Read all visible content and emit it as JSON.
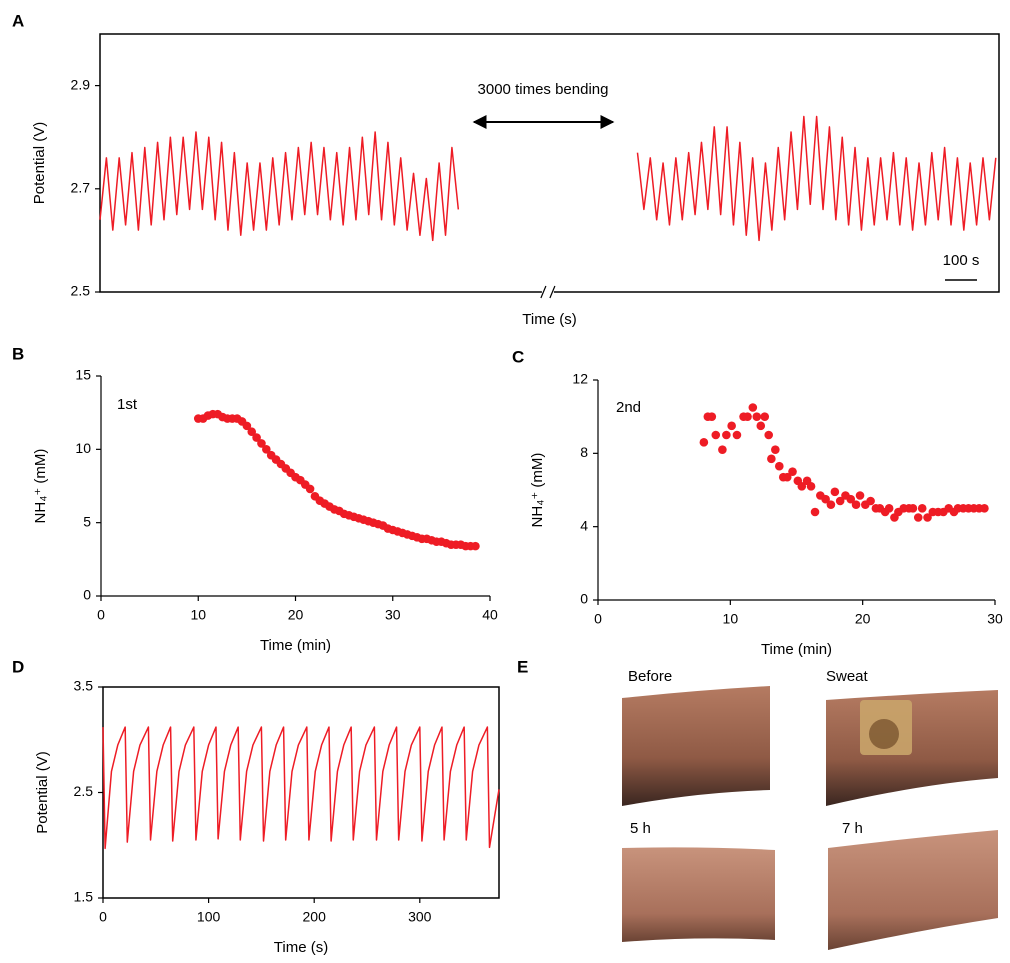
{
  "panel_labels": [
    "A",
    "B",
    "C",
    "D",
    "E"
  ],
  "photos": [
    {
      "label": "Before"
    },
    {
      "label": "Sweat"
    },
    {
      "label": "5 h"
    },
    {
      "label": "7 h"
    }
  ],
  "chart_data": [
    {
      "type": "line",
      "xlabel": "Time (s)",
      "ylabel": "Potential (V)",
      "color": "#ee1c25",
      "frame": true,
      "annotation": "3000 times bending",
      "scale_bar": {
        "value": 100,
        "label": "100 s"
      },
      "xlim": [
        0,
        2810
      ],
      "ylim": [
        2.5,
        3.0
      ],
      "yticks": [
        2.5,
        2.7,
        2.9
      ],
      "x": [
        0,
        20,
        40,
        60,
        80,
        100,
        120,
        140,
        160,
        180,
        200,
        220,
        240,
        260,
        280,
        300,
        320,
        340,
        360,
        380,
        400,
        420,
        440,
        460,
        480,
        500,
        520,
        540,
        560,
        580,
        600,
        620,
        640,
        660,
        680,
        700,
        720,
        740,
        760,
        780,
        800,
        820,
        840,
        860,
        880,
        900,
        920,
        940,
        960,
        980,
        1000,
        1020,
        1040,
        1060,
        1080,
        1100,
        1120,
        1400,
        1680,
        1700,
        1720,
        1740,
        1760,
        1780,
        1800,
        1820,
        1840,
        1860,
        1880,
        1900,
        1920,
        1940,
        1960,
        1980,
        2000,
        2020,
        2040,
        2060,
        2080,
        2100,
        2120,
        2140,
        2160,
        2180,
        2200,
        2220,
        2240,
        2260,
        2280,
        2300,
        2320,
        2340,
        2360,
        2380,
        2400,
        2420,
        2440,
        2460,
        2480,
        2500,
        2520,
        2540,
        2560,
        2580,
        2600,
        2620,
        2640,
        2660,
        2680,
        2700,
        2720,
        2740,
        2760,
        2780,
        2800
      ],
      "values": [
        2.64,
        2.76,
        2.62,
        2.76,
        2.63,
        2.77,
        2.62,
        2.78,
        2.63,
        2.79,
        2.64,
        2.8,
        2.65,
        2.8,
        2.66,
        2.81,
        2.66,
        2.8,
        2.64,
        2.79,
        2.62,
        2.77,
        2.61,
        2.75,
        2.62,
        2.75,
        2.62,
        2.76,
        2.63,
        2.77,
        2.64,
        2.78,
        2.65,
        2.79,
        2.65,
        2.78,
        2.64,
        2.77,
        2.63,
        2.78,
        2.64,
        2.8,
        2.65,
        2.81,
        2.64,
        2.79,
        2.63,
        2.76,
        2.62,
        2.73,
        2.61,
        2.72,
        2.6,
        2.75,
        2.61,
        2.78,
        2.66,
        null,
        2.77,
        2.66,
        2.76,
        2.64,
        2.75,
        2.63,
        2.76,
        2.64,
        2.77,
        2.65,
        2.79,
        2.66,
        2.82,
        2.65,
        2.82,
        2.63,
        2.79,
        2.61,
        2.76,
        2.6,
        2.75,
        2.62,
        2.78,
        2.64,
        2.81,
        2.66,
        2.84,
        2.67,
        2.84,
        2.66,
        2.82,
        2.64,
        2.8,
        2.63,
        2.78,
        2.62,
        2.76,
        2.63,
        2.76,
        2.64,
        2.77,
        2.63,
        2.76,
        2.62,
        2.75,
        2.63,
        2.77,
        2.64,
        2.78,
        2.63,
        2.76,
        2.62,
        2.75,
        2.63,
        2.76,
        2.64,
        2.76
      ]
    },
    {
      "type": "scatter",
      "xlabel": "Time (min)",
      "ylabel": "NH₄⁺ (mM)",
      "color": "#ee1c25",
      "frame": false,
      "annotation": "1st",
      "xlim": [
        0,
        40
      ],
      "xticks": [
        0,
        10,
        20,
        30,
        40
      ],
      "ylim": [
        0,
        15
      ],
      "yticks": [
        0,
        5,
        10,
        15
      ],
      "x": [
        10,
        10.5,
        11,
        11.5,
        12,
        12.5,
        13,
        13.5,
        14,
        14.5,
        15,
        15.5,
        16,
        16.5,
        17,
        17.5,
        18,
        18.5,
        19,
        19.5,
        20,
        20.5,
        21,
        21.5,
        22,
        22.5,
        23,
        23.5,
        24,
        24.5,
        25,
        25.5,
        26,
        26.5,
        27,
        27.5,
        28,
        28.5,
        29,
        29.5,
        30,
        30.5,
        31,
        31.5,
        32,
        32.5,
        33,
        33.5,
        34,
        34.5,
        35,
        35.5,
        36,
        36.5,
        37,
        37.5,
        38,
        38.5
      ],
      "values": [
        12.1,
        12.1,
        12.3,
        12.4,
        12.4,
        12.2,
        12.1,
        12.1,
        12.1,
        11.9,
        11.6,
        11.2,
        10.8,
        10.4,
        10.0,
        9.6,
        9.3,
        9.0,
        8.7,
        8.4,
        8.1,
        7.9,
        7.6,
        7.3,
        6.8,
        6.5,
        6.3,
        6.1,
        5.9,
        5.8,
        5.6,
        5.5,
        5.4,
        5.3,
        5.2,
        5.1,
        5.0,
        4.9,
        4.8,
        4.6,
        4.5,
        4.4,
        4.3,
        4.2,
        4.1,
        4.0,
        3.9,
        3.9,
        3.8,
        3.7,
        3.7,
        3.6,
        3.5,
        3.5,
        3.5,
        3.4,
        3.4,
        3.4
      ]
    },
    {
      "type": "scatter",
      "xlabel": "Time (min)",
      "ylabel": "NH₄⁺ (mM)",
      "color": "#ee1c25",
      "frame": false,
      "annotation": "2nd",
      "xlim": [
        0,
        30
      ],
      "xticks": [
        0,
        10,
        20,
        30
      ],
      "ylim": [
        0,
        12
      ],
      "yticks": [
        0,
        4,
        8,
        12
      ],
      "x": [
        8,
        8.3,
        8.6,
        8.9,
        9.4,
        9.7,
        10.1,
        10.5,
        11,
        11.3,
        11.7,
        12,
        12.3,
        12.6,
        12.9,
        13.1,
        13.4,
        13.7,
        14,
        14.3,
        14.7,
        15.1,
        15.4,
        15.8,
        16.1,
        16.4,
        16.8,
        17.2,
        17.6,
        17.9,
        18.3,
        18.7,
        19.1,
        19.5,
        19.8,
        20.2,
        20.6,
        21,
        21.3,
        21.7,
        22,
        22.4,
        22.7,
        23.1,
        23.5,
        23.8,
        24.2,
        24.5,
        24.9,
        25.3,
        25.7,
        26.1,
        26.5,
        26.9,
        27.2,
        27.6,
        28,
        28.4,
        28.8,
        29.2
      ],
      "values": [
        8.6,
        10.0,
        10.0,
        9.0,
        8.2,
        9.0,
        9.5,
        9.0,
        10.0,
        10.0,
        10.5,
        10.0,
        9.5,
        10.0,
        9.0,
        7.7,
        8.2,
        7.3,
        6.7,
        6.7,
        7.0,
        6.5,
        6.2,
        6.5,
        6.2,
        4.8,
        5.7,
        5.5,
        5.2,
        5.9,
        5.4,
        5.7,
        5.5,
        5.2,
        5.7,
        5.2,
        5.4,
        5.0,
        5.0,
        4.8,
        5.0,
        4.5,
        4.8,
        5.0,
        5.0,
        5.0,
        4.5,
        5.0,
        4.5,
        4.8,
        4.8,
        4.8,
        5.0,
        4.8,
        5.0,
        5.0,
        5.0,
        5.0,
        5.0,
        5.0
      ]
    },
    {
      "type": "line",
      "xlabel": "Time (s)",
      "ylabel": "Potential (V)",
      "color": "#ee1c25",
      "frame": true,
      "xlim": [
        0,
        375
      ],
      "xticks": [
        0,
        100,
        200,
        300
      ],
      "ylim": [
        1.5,
        3.5
      ],
      "yticks": [
        1.5,
        2.5,
        3.5
      ],
      "x": [
        0,
        2,
        8,
        14,
        21,
        23,
        29,
        35,
        43,
        45,
        51,
        57,
        64,
        66,
        72,
        78,
        86,
        88,
        94,
        100,
        107,
        109,
        115,
        121,
        128,
        130,
        136,
        142,
        150,
        152,
        158,
        164,
        171,
        173,
        179,
        185,
        193,
        195,
        201,
        207,
        214,
        216,
        222,
        228,
        235,
        237,
        243,
        249,
        257,
        259,
        265,
        271,
        278,
        280,
        286,
        292,
        300,
        302,
        308,
        314,
        321,
        323,
        329,
        335,
        342,
        344,
        350,
        356,
        364,
        366,
        375
      ],
      "values": [
        3.12,
        1.97,
        2.7,
        2.95,
        3.12,
        2.03,
        2.7,
        2.95,
        3.12,
        2.05,
        2.7,
        2.95,
        3.12,
        2.04,
        2.7,
        2.95,
        3.12,
        2.05,
        2.7,
        2.95,
        3.12,
        2.06,
        2.7,
        2.95,
        3.12,
        2.05,
        2.7,
        2.95,
        3.12,
        2.04,
        2.7,
        2.95,
        3.12,
        2.05,
        2.7,
        2.95,
        3.12,
        2.05,
        2.7,
        2.95,
        3.12,
        2.04,
        2.7,
        2.95,
        3.12,
        2.05,
        2.7,
        2.95,
        3.12,
        2.05,
        2.7,
        2.95,
        3.12,
        2.05,
        2.7,
        2.95,
        3.12,
        2.04,
        2.7,
        2.95,
        3.12,
        2.05,
        2.7,
        2.95,
        3.12,
        2.05,
        2.7,
        2.95,
        3.12,
        1.98,
        2.53
      ]
    }
  ]
}
